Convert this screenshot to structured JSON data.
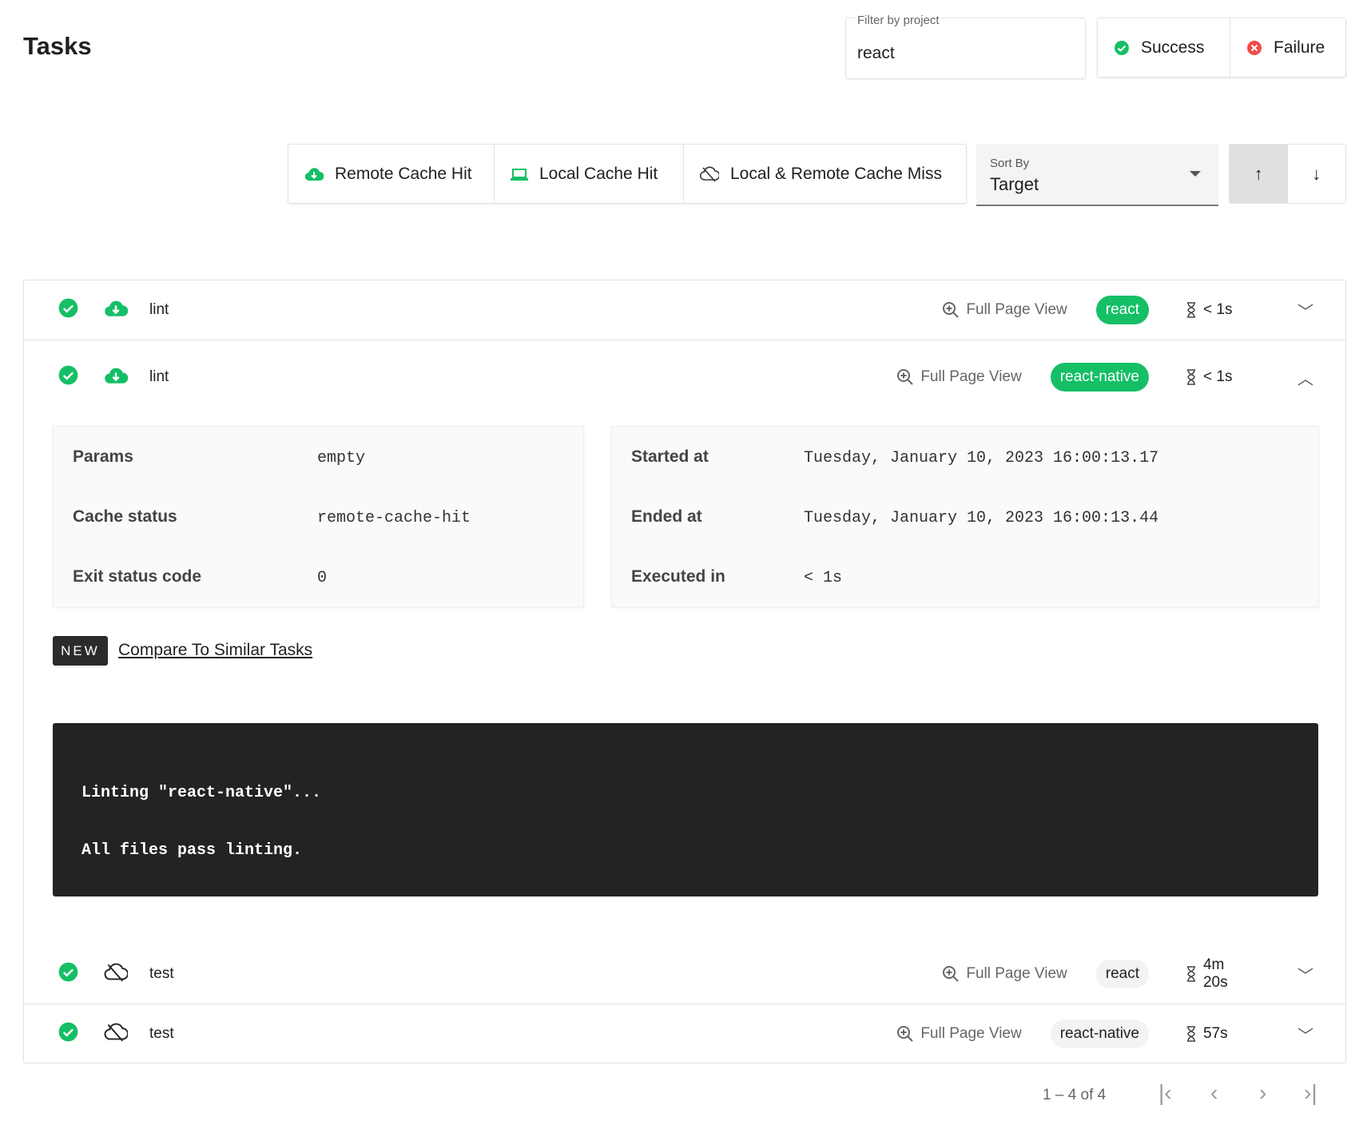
{
  "header": {
    "title": "Tasks"
  },
  "filter": {
    "label": "Filter by project",
    "value": "react"
  },
  "status_toggle": [
    {
      "label": "Success",
      "icon": "check-circle-icon",
      "color": "#15bf66"
    },
    {
      "label": "Failure",
      "icon": "x-circle-icon",
      "color": "#f04b4b"
    }
  ],
  "cache_toggle": [
    {
      "label": "Remote Cache Hit",
      "icon": "cloud-download-icon"
    },
    {
      "label": "Local Cache Hit",
      "icon": "laptop-icon"
    },
    {
      "label": "Local & Remote Cache Miss",
      "icon": "cloud-off-icon"
    }
  ],
  "sort": {
    "label": "Sort By",
    "value": "Target",
    "asc": "↑",
    "desc": "↓"
  },
  "tasks": [
    {
      "name": "lint",
      "project": "react",
      "duration": "< 1s",
      "full_page": "Full Page View",
      "cache": "remote",
      "expanded": false
    },
    {
      "name": "lint",
      "project": "react-native",
      "duration": "< 1s",
      "full_page": "Full Page View",
      "cache": "remote",
      "expanded": true
    },
    {
      "name": "test",
      "project": "react",
      "duration": "4m 20s",
      "full_page": "Full Page View",
      "cache": "miss",
      "expanded": false
    },
    {
      "name": "test",
      "project": "react-native",
      "duration": "57s",
      "full_page": "Full Page View",
      "cache": "miss",
      "expanded": false
    }
  ],
  "details": {
    "left": [
      {
        "k": "Params",
        "v": "empty"
      },
      {
        "k": "Cache status",
        "v": "remote-cache-hit"
      },
      {
        "k": "Exit status code",
        "v": "0"
      }
    ],
    "right": [
      {
        "k": "Started at",
        "v": "Tuesday, January 10, 2023 16:00:13.17"
      },
      {
        "k": "Ended at",
        "v": "Tuesday, January 10, 2023 16:00:13.44"
      },
      {
        "k": "Executed in",
        "v": "< 1s"
      }
    ],
    "new_badge": "NEW",
    "compare_link": "Compare To Similar Tasks",
    "terminal": [
      "Linting \"react-native\"...",
      "All files pass linting."
    ]
  },
  "pagination": {
    "range": "1 – 4 of 4"
  },
  "colors": {
    "accent": "#15bf66"
  }
}
